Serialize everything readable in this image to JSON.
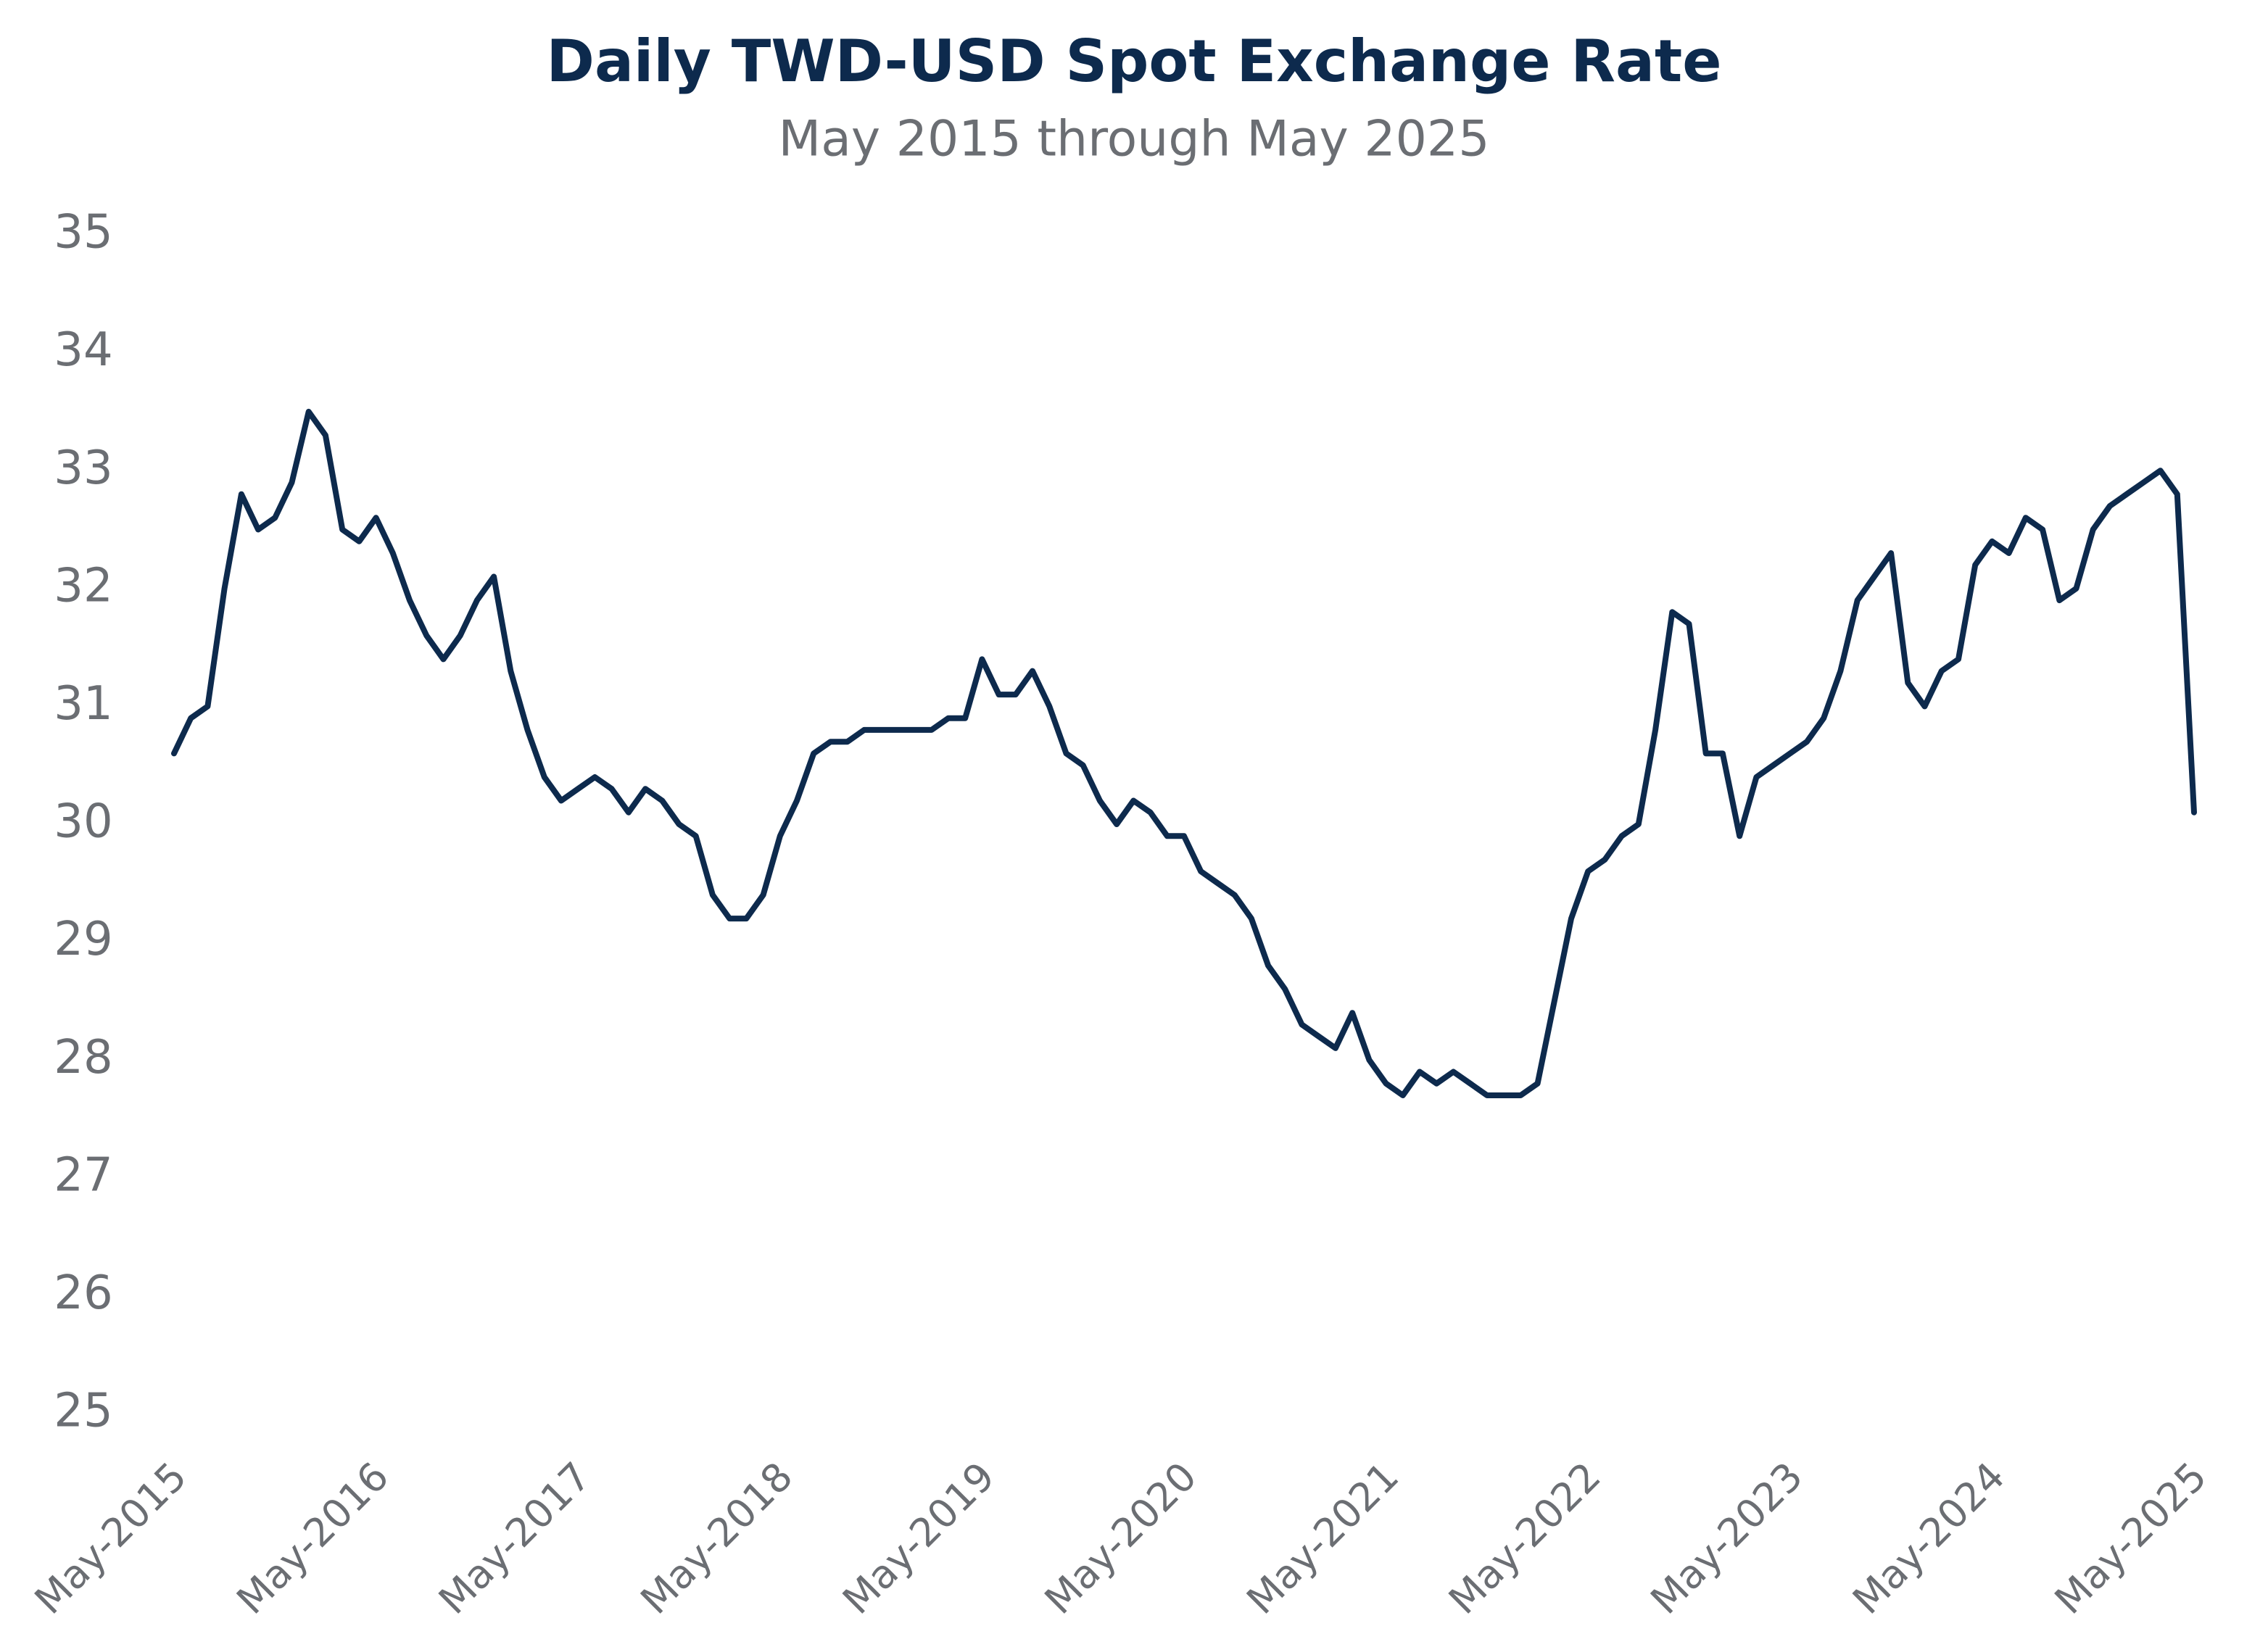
{
  "chart_data": {
    "type": "line",
    "title": "Daily TWD-USD Spot Exchange Rate",
    "subtitle": "May 2015 through May 2025",
    "categories": [
      "May-2015",
      null,
      null,
      null,
      null,
      null,
      null,
      null,
      null,
      null,
      null,
      null,
      "May-2016",
      null,
      null,
      null,
      null,
      null,
      null,
      null,
      null,
      null,
      null,
      null,
      "May-2017",
      null,
      null,
      null,
      null,
      null,
      null,
      null,
      null,
      null,
      null,
      null,
      "May-2018",
      null,
      null,
      null,
      null,
      null,
      null,
      null,
      null,
      null,
      null,
      null,
      "May-2019",
      null,
      null,
      null,
      null,
      null,
      null,
      null,
      null,
      null,
      null,
      null,
      "May-2020",
      null,
      null,
      null,
      null,
      null,
      null,
      null,
      null,
      null,
      null,
      null,
      "May-2021",
      null,
      null,
      null,
      null,
      null,
      null,
      null,
      null,
      null,
      null,
      null,
      "May-2022",
      null,
      null,
      null,
      null,
      null,
      null,
      null,
      null,
      null,
      null,
      null,
      "May-2023",
      null,
      null,
      null,
      null,
      null,
      null,
      null,
      null,
      null,
      null,
      null,
      "May-2024",
      null,
      null,
      null,
      null,
      null,
      null,
      null,
      null,
      null,
      null,
      null,
      "May-2025"
    ],
    "series": [
      {
        "name": "TWD-USD",
        "color": "#0d2a4d",
        "values": [
          30.6,
          30.9,
          31.0,
          32.0,
          32.8,
          32.5,
          32.6,
          32.9,
          33.5,
          33.3,
          32.5,
          32.4,
          32.6,
          32.3,
          31.9,
          31.6,
          31.4,
          31.6,
          31.9,
          32.1,
          31.3,
          30.8,
          30.4,
          30.2,
          30.3,
          30.4,
          30.3,
          30.1,
          30.3,
          30.2,
          30.0,
          29.9,
          29.4,
          29.2,
          29.2,
          29.4,
          29.9,
          30.2,
          30.6,
          30.7,
          30.7,
          30.8,
          30.8,
          30.8,
          30.8,
          30.8,
          30.9,
          30.9,
          31.4,
          31.1,
          31.1,
          31.3,
          31.0,
          30.6,
          30.5,
          30.2,
          30.0,
          30.2,
          30.1,
          29.9,
          29.9,
          29.6,
          29.5,
          29.4,
          29.2,
          28.8,
          28.6,
          28.3,
          28.2,
          28.1,
          28.4,
          28.0,
          27.8,
          27.7,
          27.9,
          27.8,
          27.9,
          27.8,
          27.7,
          27.7,
          27.7,
          27.8,
          28.5,
          29.2,
          29.6,
          29.7,
          29.9,
          30.0,
          30.8,
          31.8,
          31.7,
          30.6,
          30.6,
          29.9,
          30.4,
          30.5,
          30.6,
          30.7,
          30.9,
          31.3,
          31.9,
          32.1,
          32.3,
          31.2,
          31.0,
          31.3,
          31.4,
          32.2,
          32.4,
          32.3,
          32.6,
          32.5,
          31.9,
          32.0,
          32.5,
          32.7,
          32.8,
          32.9,
          33.0,
          32.8,
          30.1
        ]
      }
    ],
    "ylim": [
      25,
      35
    ],
    "yticks": [
      25,
      26,
      27,
      28,
      29,
      30,
      31,
      32,
      33,
      34,
      35
    ]
  }
}
